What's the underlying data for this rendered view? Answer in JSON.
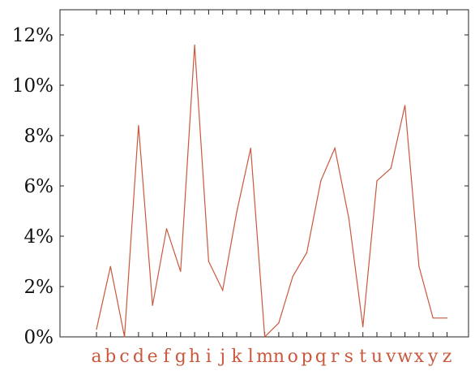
{
  "chart_data": {
    "type": "line",
    "title": "",
    "xlabel": "",
    "ylabel": "",
    "categories": [
      "a",
      "b",
      "c",
      "d",
      "e",
      "f",
      "g",
      "h",
      "i",
      "j",
      "k",
      "l",
      "m",
      "n",
      "o",
      "p",
      "q",
      "r",
      "s",
      "t",
      "u",
      "v",
      "w",
      "x",
      "y",
      "z"
    ],
    "series": [
      {
        "values": [
          0.3,
          2.8,
          0.0,
          8.4,
          1.25,
          4.3,
          2.6,
          11.6,
          3.0,
          1.85,
          4.95,
          7.5,
          0.0,
          0.55,
          2.4,
          3.35,
          6.2,
          7.5,
          4.7,
          0.4,
          6.2,
          6.7,
          9.2,
          2.8,
          0.75,
          0.75
        ],
        "color": "#c8583e"
      }
    ],
    "ylim": [
      0,
      13
    ],
    "yticks": [
      0,
      2,
      4,
      6,
      8,
      10,
      12
    ],
    "ytick_labels": [
      "0%",
      "2%",
      "4%",
      "6%",
      "8%",
      "10%",
      "12%"
    ],
    "grid": false,
    "colors": {
      "line": "#c8583e",
      "axis": "#222222",
      "xtick_label": "#c8583e"
    }
  }
}
